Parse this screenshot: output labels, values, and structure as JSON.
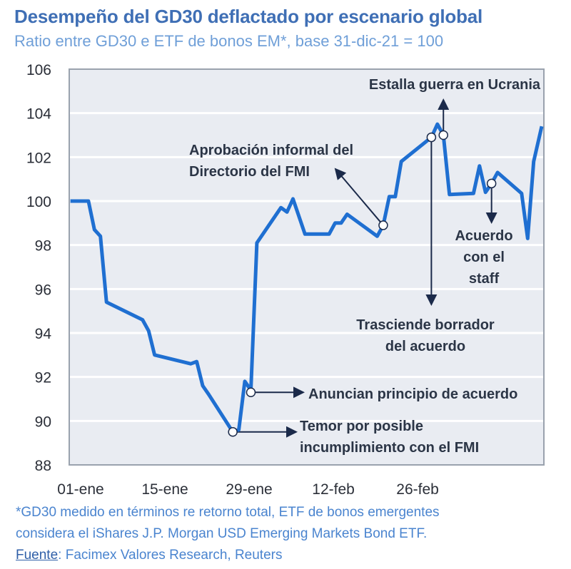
{
  "chart_data": {
    "type": "line",
    "title": "Desempeño del GD30 deflactado por escenario global",
    "subtitle": "Ratio entre GD30 e ETF de bonos EM*, base 31-dic-21 = 100",
    "xlabel": "",
    "ylabel": "",
    "ylim": [
      88,
      106
    ],
    "yticks": [
      88,
      90,
      92,
      94,
      96,
      98,
      100,
      102,
      104,
      106
    ],
    "xticks": [
      {
        "date": "2022-01-01",
        "label": "01-ene"
      },
      {
        "date": "2022-01-15",
        "label": "15-ene"
      },
      {
        "date": "2022-01-29",
        "label": "29-ene"
      },
      {
        "date": "2022-02-12",
        "label": "12-feb"
      },
      {
        "date": "2022-02-26",
        "label": "26-feb"
      }
    ],
    "grid": true,
    "line_color": "#1f6fd1",
    "plot_background": "#e9ecf2",
    "series": [
      {
        "points": [
          [
            "2021-12-31",
            100
          ],
          [
            "2022-01-03",
            100
          ],
          [
            "2022-01-04",
            98.7
          ],
          [
            "2022-01-05",
            98.4
          ],
          [
            "2022-01-06",
            95.4
          ],
          [
            "2022-01-12",
            94.6
          ],
          [
            "2022-01-13",
            94.1
          ],
          [
            "2022-01-14",
            93.0
          ],
          [
            "2022-01-20",
            92.6
          ],
          [
            "2022-01-21",
            92.7
          ],
          [
            "2022-01-22",
            91.6
          ],
          [
            "2022-01-23",
            91.2
          ],
          [
            "2022-01-27",
            89.5
          ],
          [
            "2022-01-28",
            89.6
          ],
          [
            "2022-01-29",
            91.8
          ],
          [
            "2022-01-30",
            91.4
          ],
          [
            "2022-01-31",
            98.1
          ],
          [
            "2022-02-04",
            99.7
          ],
          [
            "2022-02-05",
            99.5
          ],
          [
            "2022-02-06",
            100.1
          ],
          [
            "2022-02-08",
            98.5
          ],
          [
            "2022-02-12",
            98.5
          ],
          [
            "2022-02-13",
            99.0
          ],
          [
            "2022-02-14",
            99.0
          ],
          [
            "2022-02-15",
            99.4
          ],
          [
            "2022-02-20",
            98.4
          ],
          [
            "2022-02-21",
            98.9
          ],
          [
            "2022-02-22",
            100.2
          ],
          [
            "2022-02-23",
            100.2
          ],
          [
            "2022-02-24",
            101.8
          ],
          [
            "2022-03-01",
            102.9
          ],
          [
            "2022-03-02",
            103.5
          ],
          [
            "2022-03-03",
            103.0
          ],
          [
            "2022-03-04",
            100.3
          ],
          [
            "2022-03-08",
            100.35
          ],
          [
            "2022-03-09",
            101.6
          ],
          [
            "2022-03-10",
            100.4
          ],
          [
            "2022-03-11",
            100.8
          ],
          [
            "2022-03-12",
            101.3
          ],
          [
            "2022-03-16",
            100.35
          ],
          [
            "2022-03-17",
            98.3
          ],
          [
            "2022-03-18",
            101.8
          ],
          [
            "2022-03-20",
            103.4
          ]
        ]
      }
    ],
    "annotations": [
      {
        "date": "2022-01-27",
        "value": 89.5,
        "lines": [
          "Temor por posible",
          "incumplimiento con el FMI"
        ]
      },
      {
        "date": "2022-01-30",
        "value": 91.3,
        "lines": [
          "Anuncian principio de acuerdo"
        ]
      },
      {
        "date": "2022-02-21",
        "value": 98.9,
        "lines": [
          "Aprobación informal del",
          "Directorio del FMI"
        ]
      },
      {
        "date": "2022-03-01",
        "value": 102.9,
        "lines": [
          "Trasciende borrador",
          "del acuerdo"
        ]
      },
      {
        "date": "2022-03-03",
        "value": 103.0,
        "lines": [
          "Estalla guerra en Ucrania"
        ]
      },
      {
        "date": "2022-03-11",
        "value": 100.8,
        "lines": [
          "Acuerdo",
          "con el",
          "staff"
        ]
      }
    ]
  },
  "footnote": {
    "line1": "*GD30 medido en términos re retorno total, ETF de bonos emergentes",
    "line2": "considera el iShares J.P. Morgan USD Emerging Markets Bond ETF.",
    "source_label": "Fuente",
    "source_text": ": Facimex Valores Research, Reuters"
  }
}
